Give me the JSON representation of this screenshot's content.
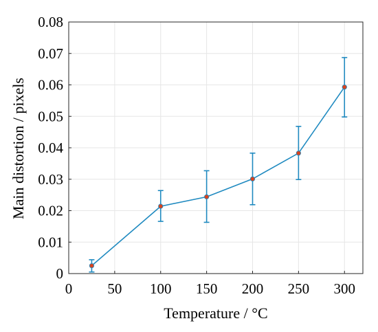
{
  "chart_data": {
    "type": "line",
    "title": "",
    "xlabel": "Temperature / °C",
    "ylabel": "Main distortion / pixels",
    "xlim": [
      0,
      320
    ],
    "ylim": [
      0,
      0.08
    ],
    "xticks": [
      0,
      50,
      100,
      150,
      200,
      250,
      300
    ],
    "xtick_labels": [
      "0",
      "50",
      "100",
      "150",
      "200",
      "250",
      "300"
    ],
    "yticks": [
      0,
      0.01,
      0.02,
      0.03,
      0.04,
      0.05,
      0.06,
      0.07,
      0.08
    ],
    "ytick_labels": [
      "0",
      "0.01",
      "0.02",
      "0.03",
      "0.04",
      "0.05",
      "0.06",
      "0.07",
      "0.08"
    ],
    "grid": true,
    "legend": "none",
    "series": [
      {
        "x": [
          25,
          100,
          150,
          200,
          250,
          300
        ],
        "y": [
          0.0025,
          0.0214,
          0.0244,
          0.0301,
          0.0383,
          0.0593
        ],
        "err_low": [
          0.0005,
          0.0166,
          0.0163,
          0.0219,
          0.0299,
          0.0498
        ],
        "err_high": [
          0.0044,
          0.0264,
          0.0327,
          0.0383,
          0.0468,
          0.0687
        ],
        "line_color": "#1f8ac0",
        "marker_color": "#d7431f"
      }
    ]
  }
}
